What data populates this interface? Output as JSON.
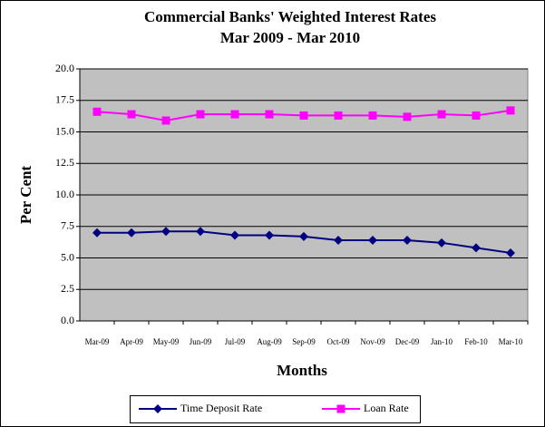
{
  "chart_data": {
    "type": "line",
    "title": "Commercial Banks' Weighted  Interest Rates",
    "subtitle": "Mar 2009 - Mar 2010",
    "x_label": "Months",
    "y_label": "Per Cent",
    "categories": [
      "Mar-09",
      "Apr-09",
      "May-09",
      "Jun-09",
      "Jul-09",
      "Aug-09",
      "Sep-09",
      "Oct-09",
      "Nov-09",
      "Dec-09",
      "Jan-10",
      "Feb-10",
      "Mar-10"
    ],
    "series": [
      {
        "name": "Time Deposit Rate",
        "color": "#000080",
        "marker": "diamond",
        "values": [
          7.0,
          7.0,
          7.1,
          7.1,
          6.8,
          6.8,
          6.7,
          6.4,
          6.4,
          6.4,
          6.2,
          5.8,
          5.4
        ]
      },
      {
        "name": "Loan Rate",
        "color": "#ff00ff",
        "marker": "square",
        "values": [
          16.6,
          16.4,
          15.9,
          16.4,
          16.4,
          16.4,
          16.3,
          16.3,
          16.3,
          16.2,
          16.4,
          16.3,
          16.7
        ]
      }
    ],
    "ylim": [
      0,
      20
    ],
    "yticks": [
      {
        "value": 0,
        "label": "0.0"
      },
      {
        "value": 2.5,
        "label": "2.5"
      },
      {
        "value": 5,
        "label": "5.0"
      },
      {
        "value": 7.5,
        "label": "7.5"
      },
      {
        "value": 10,
        "label": "10.0"
      },
      {
        "value": 12.5,
        "label": "12.5"
      },
      {
        "value": 15,
        "label": "15.0"
      },
      {
        "value": 17.5,
        "label": "17.5"
      },
      {
        "value": 20,
        "label": "20.0"
      }
    ],
    "grid": true,
    "plot_background": "#c0c0c0",
    "legend": "bottom"
  }
}
